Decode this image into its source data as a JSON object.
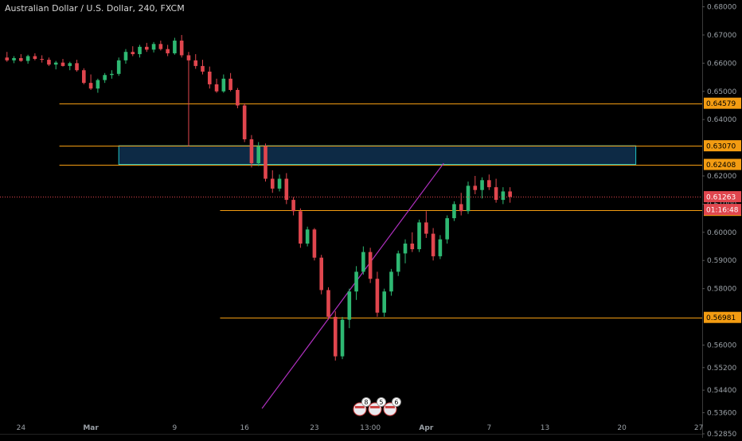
{
  "window": {
    "title": "Australian Dollar / U.S. Dollar, 240, FXCM"
  },
  "colors": {
    "background": "#000000",
    "up": "#2eb872",
    "down": "#e0464e",
    "level_line": "#f39c12",
    "level_tag": "#f39c12",
    "current_tag": "#e0464e",
    "zone_fill": "#0d2a45",
    "zone_border": "#21c6c6",
    "trendline": "#b030c0",
    "axis_text": "#9aa0a6"
  },
  "chart_data": {
    "type": "candlestick",
    "title": "Australian Dollar / U.S. Dollar, 240, FXCM",
    "ylim": [
      0.5285,
      0.681
    ],
    "yticks": [
      "0.68000",
      "0.67000",
      "0.66000",
      "0.65000",
      "0.64000",
      "0.62000",
      "0.61000",
      "0.60000",
      "0.59000",
      "0.58000",
      "0.56000",
      "0.55200",
      "0.54400",
      "0.53600",
      "0.52850"
    ],
    "xticks": [
      {
        "label": "24",
        "t": 2
      },
      {
        "label": "Mar",
        "t": 12
      },
      {
        "label": "9",
        "t": 24
      },
      {
        "label": "16",
        "t": 34
      },
      {
        "label": "23",
        "t": 44
      },
      {
        "label": "13:00",
        "t": 52
      },
      {
        "label": "Apr",
        "t": 60
      },
      {
        "label": "7",
        "t": 69
      },
      {
        "label": "13",
        "t": 77
      },
      {
        "label": "20",
        "t": 88
      },
      {
        "label": "27",
        "t": 99
      }
    ],
    "t_range": [
      -1,
      99.5
    ],
    "levels": [
      {
        "price": 0.64579,
        "label": "0.64579",
        "t_start": 7.5
      },
      {
        "price": 0.6307,
        "label": "0.63070",
        "t_start": 7.5
      },
      {
        "price": 0.62408,
        "label": "0.62408",
        "t_start": 7.5
      },
      {
        "price": 0.6078,
        "label": "0.60780",
        "t_start": 30.5
      },
      {
        "price": 0.56981,
        "label": "0.56981",
        "t_start": 30.5
      }
    ],
    "current_price": {
      "price": 0.61263,
      "label": "0.61263",
      "countdown": "01:16:48"
    },
    "zone": {
      "t_start": 16,
      "t_end": 90,
      "price_top": 0.6307,
      "price_bottom": 0.62408
    },
    "trendline": {
      "t1": 36.5,
      "p1": 0.5375,
      "t2": 62.5,
      "p2": 0.6245
    },
    "events": [
      "8",
      "5",
      "6"
    ],
    "candles": [
      [
        0.662,
        0.664,
        0.6605,
        0.661
      ],
      [
        0.661,
        0.6625,
        0.66,
        0.6618
      ],
      [
        0.6618,
        0.6632,
        0.6605,
        0.6608
      ],
      [
        0.6608,
        0.663,
        0.6598,
        0.6625
      ],
      [
        0.6625,
        0.6635,
        0.661,
        0.6615
      ],
      [
        0.6615,
        0.6628,
        0.6602,
        0.6612
      ],
      [
        0.6612,
        0.662,
        0.659,
        0.6595
      ],
      [
        0.6595,
        0.6608,
        0.6578,
        0.6602
      ],
      [
        0.6602,
        0.6615,
        0.6588,
        0.659
      ],
      [
        0.659,
        0.6605,
        0.6575,
        0.66
      ],
      [
        0.66,
        0.6612,
        0.657,
        0.6575
      ],
      [
        0.6575,
        0.6582,
        0.6525,
        0.653
      ],
      [
        0.653,
        0.656,
        0.6505,
        0.651
      ],
      [
        0.651,
        0.6545,
        0.6495,
        0.654
      ],
      [
        0.654,
        0.6565,
        0.653,
        0.6558
      ],
      [
        0.6558,
        0.6575,
        0.6545,
        0.6562
      ],
      [
        0.6562,
        0.662,
        0.6555,
        0.661
      ],
      [
        0.661,
        0.665,
        0.6598,
        0.664
      ],
      [
        0.664,
        0.666,
        0.6625,
        0.6632
      ],
      [
        0.6632,
        0.6665,
        0.662,
        0.6658
      ],
      [
        0.6658,
        0.6672,
        0.664,
        0.6648
      ],
      [
        0.6648,
        0.6675,
        0.6638,
        0.6668
      ],
      [
        0.6668,
        0.668,
        0.6645,
        0.665
      ],
      [
        0.665,
        0.6665,
        0.6625,
        0.6635
      ],
      [
        0.6635,
        0.669,
        0.663,
        0.668
      ],
      [
        0.668,
        0.67,
        0.662,
        0.6628
      ],
      [
        0.6628,
        0.664,
        0.6305,
        0.661
      ],
      [
        0.661,
        0.6632,
        0.658,
        0.659
      ],
      [
        0.659,
        0.6612,
        0.656,
        0.657
      ],
      [
        0.657,
        0.6588,
        0.651,
        0.6525
      ],
      [
        0.6525,
        0.6545,
        0.6495,
        0.65
      ],
      [
        0.65,
        0.656,
        0.6495,
        0.6545
      ],
      [
        0.6545,
        0.6565,
        0.65,
        0.6505
      ],
      [
        0.6505,
        0.6512,
        0.644,
        0.645
      ],
      [
        0.645,
        0.6458,
        0.632,
        0.633
      ],
      [
        0.633,
        0.6345,
        0.623,
        0.6245
      ],
      [
        0.6245,
        0.632,
        0.6235,
        0.6305
      ],
      [
        0.6305,
        0.6315,
        0.618,
        0.619
      ],
      [
        0.619,
        0.622,
        0.614,
        0.6155
      ],
      [
        0.6155,
        0.6205,
        0.6145,
        0.619
      ],
      [
        0.619,
        0.621,
        0.61,
        0.6115
      ],
      [
        0.6115,
        0.6125,
        0.606,
        0.6075
      ],
      [
        0.6075,
        0.6085,
        0.5945,
        0.596
      ],
      [
        0.596,
        0.602,
        0.595,
        0.601
      ],
      [
        0.601,
        0.6015,
        0.59,
        0.591
      ],
      [
        0.591,
        0.592,
        0.578,
        0.5795
      ],
      [
        0.5795,
        0.5805,
        0.569,
        0.57
      ],
      [
        0.57,
        0.572,
        0.5545,
        0.556
      ],
      [
        0.556,
        0.57,
        0.555,
        0.569
      ],
      [
        0.569,
        0.58,
        0.566,
        0.579
      ],
      [
        0.579,
        0.588,
        0.576,
        0.586
      ],
      [
        0.586,
        0.595,
        0.585,
        0.593
      ],
      [
        0.593,
        0.5945,
        0.582,
        0.5835
      ],
      [
        0.5835,
        0.586,
        0.57,
        0.5715
      ],
      [
        0.5715,
        0.58,
        0.57,
        0.579
      ],
      [
        0.579,
        0.587,
        0.5775,
        0.586
      ],
      [
        0.586,
        0.5935,
        0.5845,
        0.5925
      ],
      [
        0.5925,
        0.5975,
        0.589,
        0.596
      ],
      [
        0.596,
        0.6,
        0.593,
        0.594
      ],
      [
        0.594,
        0.6045,
        0.593,
        0.6035
      ],
      [
        0.6035,
        0.6075,
        0.598,
        0.5995
      ],
      [
        0.5995,
        0.6015,
        0.59,
        0.5915
      ],
      [
        0.5915,
        0.599,
        0.5905,
        0.5975
      ],
      [
        0.5975,
        0.606,
        0.596,
        0.605
      ],
      [
        0.605,
        0.611,
        0.604,
        0.61
      ],
      [
        0.61,
        0.614,
        0.606,
        0.6075
      ],
      [
        0.6075,
        0.618,
        0.6065,
        0.6165
      ],
      [
        0.6165,
        0.62,
        0.6135,
        0.615
      ],
      [
        0.615,
        0.6195,
        0.612,
        0.6185
      ],
      [
        0.6185,
        0.6205,
        0.615,
        0.616
      ],
      [
        0.616,
        0.619,
        0.6105,
        0.6115
      ],
      [
        0.6115,
        0.616,
        0.61,
        0.6145
      ],
      [
        0.6145,
        0.616,
        0.6105,
        0.6126
      ]
    ]
  }
}
